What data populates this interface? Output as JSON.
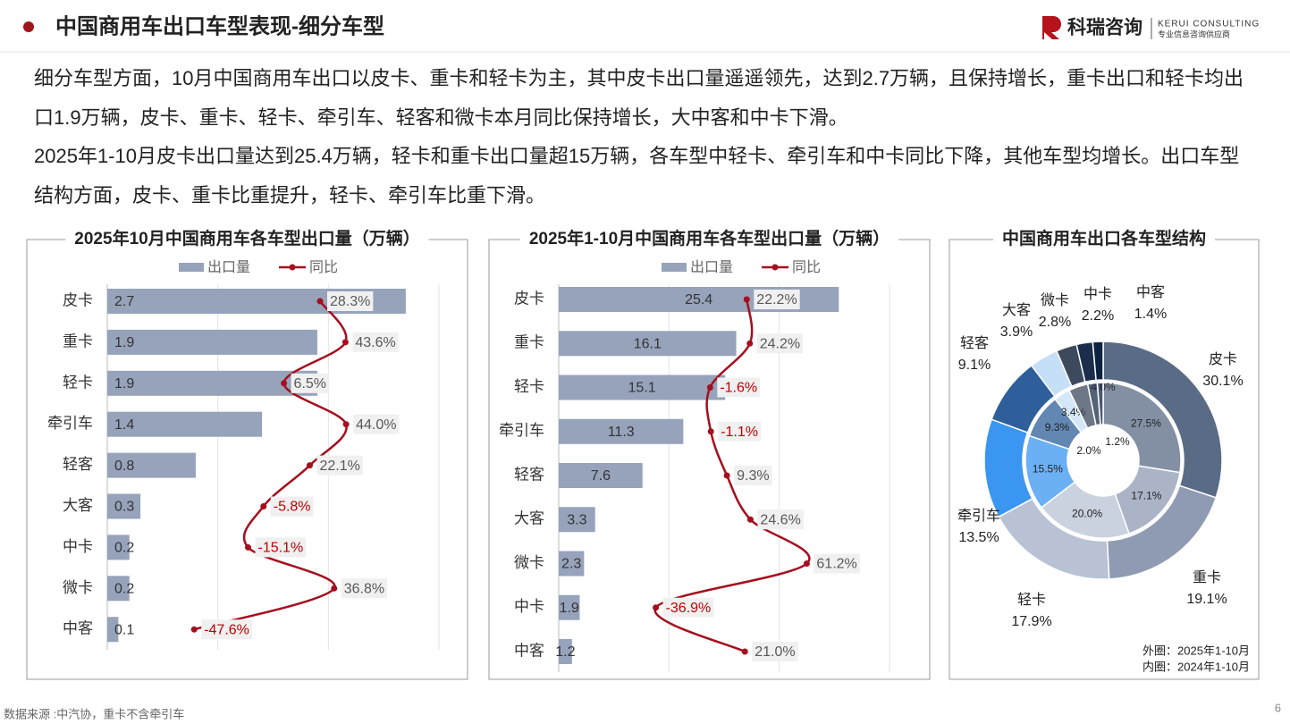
{
  "header": {
    "title": "中国商用车出口车型表现-细分车型",
    "logo": "科瑞咨询",
    "logo_en": "KERUI CONSULTING",
    "logo_sub": "专业信息咨询供应商"
  },
  "paragraphs": [
    "细分车型方面，10月中国商用车出口以皮卡、重卡和轻卡为主，其中皮卡出口量遥遥领先，达到2.7万辆，且保持增长，重卡出口和轻卡均出口1.9万辆，皮卡、重卡、轻卡、牵引车、轻客和微卡本月同比保持增长，大中客和中卡下滑。",
    "2025年1-10月皮卡出口量达到25.4万辆，轻卡和重卡出口量超15万辆，各车型中轻卡、牵引车和中卡同比下降，其他车型均增长。出口车型结构方面，皮卡、重卡比重提升，轻卡、牵引车比重下滑。"
  ],
  "chart_data": [
    {
      "type": "bar",
      "orientation": "horizontal",
      "title": "2025年10月中国商用车各车型出口量（万辆）",
      "categories": [
        "皮卡",
        "重卡",
        "轻卡",
        "牵引车",
        "轻客",
        "大客",
        "中卡",
        "微卡",
        "中客"
      ],
      "series": [
        {
          "name": "出口量",
          "color": "#96a3bb",
          "values": [
            2.7,
            1.9,
            1.9,
            1.4,
            0.8,
            0.3,
            0.2,
            0.2,
            0.1
          ]
        },
        {
          "name": "同比",
          "type": "line",
          "axis": "x2",
          "color": "#a50f1e",
          "values": [
            28.3,
            43.6,
            6.5,
            44.0,
            22.1,
            -5.8,
            -15.1,
            36.8,
            -47.6
          ],
          "value_labels": [
            "28.3%",
            "43.6%",
            "6.5%",
            "44.0%",
            "22.1%",
            "-5.8%",
            "-15.1%",
            "36.8%",
            "-47.6%"
          ]
        }
      ],
      "xlim": [
        0,
        3
      ],
      "xticks": [
        0,
        1,
        2,
        3
      ],
      "x2lim": [
        -100,
        100
      ],
      "grid": true,
      "legend": "top"
    },
    {
      "type": "bar",
      "orientation": "horizontal",
      "title": "2025年1-10月中国商用车各车型出口量（万辆）",
      "categories": [
        "皮卡",
        "重卡",
        "轻卡",
        "牵引车",
        "轻客",
        "大客",
        "微卡",
        "中卡",
        "中客"
      ],
      "series": [
        {
          "name": "出口量",
          "color": "#96a3bb",
          "values": [
            25.4,
            16.1,
            15.1,
            11.3,
            7.6,
            3.3,
            2.3,
            1.9,
            1.2
          ]
        },
        {
          "name": "同比",
          "type": "line",
          "axis": "x2",
          "color": "#a50f1e",
          "values": [
            22.2,
            24.2,
            -1.6,
            -1.1,
            9.3,
            24.6,
            61.2,
            -36.9,
            21.0
          ],
          "value_labels": [
            "22.2%",
            "24.2%",
            "-1.6%",
            "-1.1%",
            "9.3%",
            "24.6%",
            "61.2%",
            "-36.9%",
            "21.0%"
          ]
        }
      ],
      "xlim": [
        0,
        30
      ],
      "xticks": [
        0,
        10,
        20,
        30
      ],
      "x2lim": [
        -100,
        115
      ],
      "grid": true,
      "legend": "top"
    },
    {
      "type": "pie",
      "title": "中国商用车出口各车型结构",
      "categories": [
        "皮卡",
        "重卡",
        "轻卡",
        "牵引车",
        "轻客",
        "大客",
        "微卡",
        "中卡",
        "中客"
      ],
      "colors": [
        "#5a6b85",
        "#8e9bb3",
        "#b8c2d4",
        "#3a96f0",
        "#2e5f9a",
        "#c5dff7",
        "#3d4a5e",
        "#1b2d4a",
        "#0d2240"
      ],
      "series": [
        {
          "values": [
            30.1,
            19.1,
            17.9,
            13.5,
            9.1,
            3.9,
            2.8,
            2.2,
            1.4
          ],
          "value_labels": [
            "30.1%",
            "19.1%",
            "17.9%",
            "13.5%",
            "9.1%",
            "3.9%",
            "2.8%",
            "2.2%",
            "1.4%"
          ]
        },
        {
          "values": [
            27.5,
            17.1,
            20.0,
            15.5,
            9.3,
            3.4,
            4.0,
            2.0,
            1.2
          ],
          "value_labels": [
            "27.5%",
            "17.1%",
            "20.0%",
            "15.5%",
            "9.3%",
            "3.4%",
            "4.0%",
            "2.0%",
            "1.2%"
          ]
        }
      ],
      "annotations": [
        "外圈：2025年1-10月",
        "内圈：2024年1-10月"
      ]
    }
  ],
  "source": "数据来源 :中汽协，重卡不含牵引车",
  "page_number": 6
}
